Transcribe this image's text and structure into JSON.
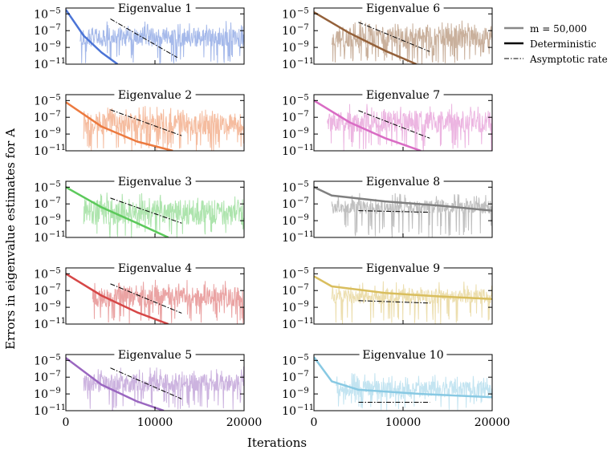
{
  "figure": {
    "ylabel": "Errors in eigenvalue estimates for A",
    "xlabel": "Iterations"
  },
  "legend": {
    "placement": "right of top-right panel",
    "entries": [
      {
        "label": "m = 50,000",
        "style": "solid",
        "color": "#888888"
      },
      {
        "label": "Deterministic",
        "style": "solid",
        "color": "#000000"
      },
      {
        "label": "Asymptotic rate",
        "style": "dashdot",
        "color": "#000000"
      }
    ]
  },
  "axes_common": {
    "x_range": [
      0,
      20000
    ],
    "x_ticks": [
      0,
      10000,
      20000
    ],
    "x_tick_labels": [
      "0",
      "10000",
      "20000"
    ],
    "y_scale": "log",
    "y_range_exp": [
      -11,
      -4.3
    ],
    "y_tick_exponents": [
      -5,
      -7,
      -9,
      -11
    ],
    "y_tick_labels": [
      "10",
      "10",
      "10",
      "10"
    ],
    "y_tick_superscripts": [
      "−5",
      "−7",
      "−9",
      "−11"
    ]
  },
  "chart_data": [
    {
      "type": "line",
      "title": "Eigenvalue 1",
      "color": "#4b74d6",
      "noise": {
        "start_x": 1600,
        "center_exp": -7.8,
        "half_width": 1.1
      },
      "deterministic": [
        [
          0,
          -4.5
        ],
        [
          2000,
          -7.6
        ],
        [
          4000,
          -9.6
        ],
        [
          5800,
          -11
        ]
      ],
      "asymptotic": [
        [
          5000,
          -5.6
        ],
        [
          12500,
          -10.2
        ]
      ]
    },
    {
      "type": "line",
      "title": "Eigenvalue 2",
      "color": "#ec7a3f",
      "noise": {
        "start_x": 2000,
        "center_exp": -7.8,
        "half_width": 1.3
      },
      "deterministic": [
        [
          0,
          -5.2
        ],
        [
          4000,
          -8.1
        ],
        [
          8000,
          -9.9
        ],
        [
          12000,
          -11
        ]
      ],
      "asymptotic": [
        [
          5000,
          -6.1
        ],
        [
          13000,
          -9.2
        ]
      ]
    },
    {
      "type": "line",
      "title": "Eigenvalue 3",
      "color": "#5cc95b",
      "noise": {
        "start_x": 2000,
        "center_exp": -8.0,
        "half_width": 1.5
      },
      "deterministic": [
        [
          0,
          -5.0
        ],
        [
          4000,
          -7.4
        ],
        [
          8000,
          -9.3
        ],
        [
          11500,
          -11
        ]
      ],
      "asymptotic": [
        [
          5000,
          -6.3
        ],
        [
          13000,
          -9.3
        ]
      ]
    },
    {
      "type": "line",
      "title": "Eigenvalue 4",
      "color": "#d64747",
      "noise": {
        "start_x": 3000,
        "center_exp": -7.8,
        "half_width": 1.2
      },
      "deterministic": [
        [
          0,
          -5.0
        ],
        [
          4000,
          -7.6
        ],
        [
          8000,
          -9.6
        ],
        [
          11500,
          -11
        ]
      ],
      "asymptotic": [
        [
          5000,
          -6.2
        ],
        [
          13000,
          -9.7
        ]
      ]
    },
    {
      "type": "line",
      "title": "Eigenvalue 5",
      "color": "#9a67c0",
      "noise": {
        "start_x": 2000,
        "center_exp": -7.7,
        "half_width": 1.1
      },
      "deterministic": [
        [
          0,
          -4.7
        ],
        [
          4000,
          -7.9
        ],
        [
          8000,
          -9.9
        ],
        [
          11000,
          -11
        ]
      ],
      "asymptotic": [
        [
          5000,
          -5.9
        ],
        [
          13000,
          -9.6
        ]
      ]
    },
    {
      "type": "line",
      "title": "Eigenvalue 6",
      "color": "#94613a",
      "noise": {
        "start_x": 2000,
        "center_exp": -7.8,
        "half_width": 1.3
      },
      "deterministic": [
        [
          0,
          -4.8
        ],
        [
          4000,
          -7.3
        ],
        [
          8000,
          -9.4
        ],
        [
          11500,
          -11
        ]
      ],
      "asymptotic": [
        [
          5000,
          -6.0
        ],
        [
          13000,
          -9.5
        ]
      ]
    },
    {
      "type": "line",
      "title": "Eigenvalue 7",
      "color": "#d96cc4",
      "noise": {
        "start_x": 1500,
        "center_exp": -7.5,
        "half_width": 1.3
      },
      "deterministic": [
        [
          0,
          -5.0
        ],
        [
          4000,
          -7.6
        ],
        [
          8000,
          -9.5
        ],
        [
          12000,
          -11
        ]
      ],
      "asymptotic": [
        [
          5000,
          -6.2
        ],
        [
          13000,
          -9.5
        ]
      ]
    },
    {
      "type": "line",
      "title": "Eigenvalue 8",
      "color": "#7f7f7f",
      "noise": {
        "start_x": 2000,
        "center_exp": -7.4,
        "half_width": 0.8
      },
      "deterministic": [
        [
          0,
          -5.0
        ],
        [
          2000,
          -6.0
        ],
        [
          8000,
          -6.7
        ],
        [
          14000,
          -7.2
        ],
        [
          20000,
          -7.8
        ]
      ],
      "asymptotic": [
        [
          5000,
          -7.8
        ],
        [
          13000,
          -8.0
        ]
      ]
    },
    {
      "type": "line",
      "title": "Eigenvalue 9",
      "color": "#d9be5e",
      "noise": {
        "start_x": 2000,
        "center_exp": -7.7,
        "half_width": 0.9
      },
      "deterministic": [
        [
          0,
          -5.3
        ],
        [
          2000,
          -6.5
        ],
        [
          8000,
          -7.3
        ],
        [
          14000,
          -7.7
        ],
        [
          20000,
          -8.0
        ]
      ],
      "asymptotic": [
        [
          5000,
          -8.2
        ],
        [
          13000,
          -8.5
        ]
      ]
    },
    {
      "type": "line",
      "title": "Eigenvalue 10",
      "color": "#88c9e3",
      "noise": {
        "start_x": 2500,
        "center_exp": -8.4,
        "half_width": 1.0
      },
      "deterministic": [
        [
          0,
          -4.6
        ],
        [
          2000,
          -7.5
        ],
        [
          5000,
          -8.5
        ],
        [
          12000,
          -9.0
        ],
        [
          20000,
          -9.4
        ]
      ],
      "asymptotic": [
        [
          5000,
          -10.0
        ],
        [
          13000,
          -10.0
        ]
      ]
    }
  ]
}
